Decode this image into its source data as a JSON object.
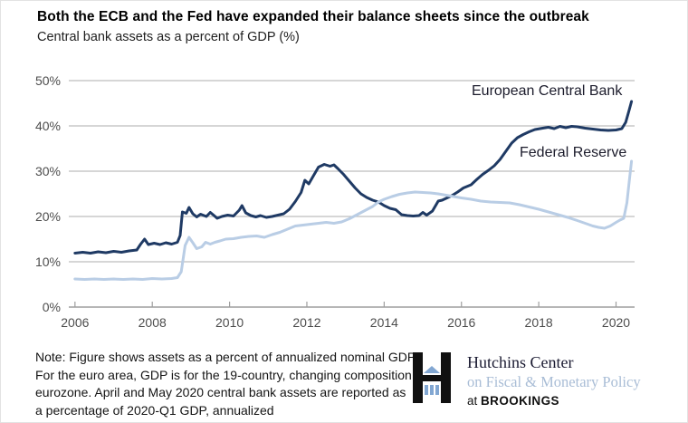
{
  "header": {
    "title": "Both the ECB and the Fed have expanded their balance sheets since the outbreak",
    "subtitle": "Central bank assets as a percent of GDP (%)"
  },
  "chart_data": {
    "type": "line",
    "title": "Central bank assets as a percent of GDP (%)",
    "xlabel": "",
    "ylabel": "",
    "xlim": [
      2005.84,
      2020.48
    ],
    "ylim": [
      0,
      50
    ],
    "grid": "horizontal",
    "legend_position": "inline-labels",
    "x_ticks": [
      2006,
      2008,
      2010,
      2012,
      2014,
      2016,
      2018,
      2020
    ],
    "x_tick_labels": [
      "2006",
      "2008",
      "2010",
      "2012",
      "2014",
      "2016",
      "2018",
      "2020"
    ],
    "y_ticks": [
      0,
      10,
      20,
      30,
      40,
      50
    ],
    "y_tick_labels": [
      "0%",
      "10%",
      "20%",
      "30%",
      "40%",
      "50%"
    ],
    "colors": {
      "ecb": "#1f3a64",
      "fed": "#b9cde5",
      "gridline": "#bdbdbd",
      "axis": "#9e9e9e"
    },
    "series": [
      {
        "name": "European Central Bank",
        "color": "#1f3a64",
        "points": [
          [
            2006.0,
            11.9
          ],
          [
            2006.2,
            12.1
          ],
          [
            2006.4,
            11.9
          ],
          [
            2006.6,
            12.2
          ],
          [
            2006.8,
            12.0
          ],
          [
            2007.0,
            12.3
          ],
          [
            2007.2,
            12.1
          ],
          [
            2007.4,
            12.4
          ],
          [
            2007.6,
            12.6
          ],
          [
            2007.7,
            13.9
          ],
          [
            2007.8,
            15.0
          ],
          [
            2007.9,
            13.8
          ],
          [
            2008.05,
            14.1
          ],
          [
            2008.2,
            13.8
          ],
          [
            2008.35,
            14.2
          ],
          [
            2008.5,
            13.9
          ],
          [
            2008.65,
            14.3
          ],
          [
            2008.72,
            15.8
          ],
          [
            2008.78,
            21.0
          ],
          [
            2008.88,
            20.7
          ],
          [
            2008.95,
            22.0
          ],
          [
            2009.05,
            20.6
          ],
          [
            2009.15,
            19.9
          ],
          [
            2009.25,
            20.5
          ],
          [
            2009.4,
            20.0
          ],
          [
            2009.5,
            20.9
          ],
          [
            2009.6,
            20.2
          ],
          [
            2009.68,
            19.6
          ],
          [
            2009.8,
            20.0
          ],
          [
            2009.95,
            20.3
          ],
          [
            2010.1,
            20.1
          ],
          [
            2010.25,
            21.4
          ],
          [
            2010.32,
            22.4
          ],
          [
            2010.42,
            20.8
          ],
          [
            2010.55,
            20.2
          ],
          [
            2010.68,
            19.9
          ],
          [
            2010.8,
            20.2
          ],
          [
            2010.95,
            19.8
          ],
          [
            2011.1,
            20.0
          ],
          [
            2011.25,
            20.3
          ],
          [
            2011.4,
            20.6
          ],
          [
            2011.55,
            21.6
          ],
          [
            2011.7,
            23.3
          ],
          [
            2011.85,
            25.3
          ],
          [
            2011.95,
            28.0
          ],
          [
            2012.05,
            27.2
          ],
          [
            2012.15,
            28.7
          ],
          [
            2012.3,
            30.9
          ],
          [
            2012.45,
            31.5
          ],
          [
            2012.6,
            31.1
          ],
          [
            2012.7,
            31.4
          ],
          [
            2012.8,
            30.6
          ],
          [
            2012.95,
            29.3
          ],
          [
            2013.1,
            27.8
          ],
          [
            2013.25,
            26.3
          ],
          [
            2013.4,
            25.0
          ],
          [
            2013.55,
            24.2
          ],
          [
            2013.7,
            23.6
          ],
          [
            2013.85,
            23.2
          ],
          [
            2014.0,
            22.4
          ],
          [
            2014.15,
            21.8
          ],
          [
            2014.3,
            21.5
          ],
          [
            2014.45,
            20.4
          ],
          [
            2014.6,
            20.2
          ],
          [
            2014.75,
            20.1
          ],
          [
            2014.9,
            20.2
          ],
          [
            2015.0,
            20.9
          ],
          [
            2015.1,
            20.3
          ],
          [
            2015.25,
            21.2
          ],
          [
            2015.4,
            23.4
          ],
          [
            2015.5,
            23.6
          ],
          [
            2015.6,
            24.0
          ],
          [
            2015.75,
            24.6
          ],
          [
            2015.9,
            25.4
          ],
          [
            2016.05,
            26.3
          ],
          [
            2016.25,
            27.0
          ],
          [
            2016.4,
            28.2
          ],
          [
            2016.55,
            29.3
          ],
          [
            2016.7,
            30.2
          ],
          [
            2016.85,
            31.2
          ],
          [
            2017.0,
            32.6
          ],
          [
            2017.15,
            34.4
          ],
          [
            2017.3,
            36.2
          ],
          [
            2017.45,
            37.4
          ],
          [
            2017.6,
            38.1
          ],
          [
            2017.75,
            38.7
          ],
          [
            2017.9,
            39.2
          ],
          [
            2018.1,
            39.5
          ],
          [
            2018.25,
            39.7
          ],
          [
            2018.4,
            39.4
          ],
          [
            2018.55,
            39.9
          ],
          [
            2018.7,
            39.6
          ],
          [
            2018.85,
            39.9
          ],
          [
            2019.0,
            39.8
          ],
          [
            2019.2,
            39.5
          ],
          [
            2019.4,
            39.3
          ],
          [
            2019.6,
            39.1
          ],
          [
            2019.8,
            39.0
          ],
          [
            2020.0,
            39.1
          ],
          [
            2020.15,
            39.4
          ],
          [
            2020.25,
            40.8
          ],
          [
            2020.33,
            43.2
          ],
          [
            2020.4,
            45.4
          ]
        ]
      },
      {
        "name": "Federal Reserve",
        "color": "#b9cde5",
        "points": [
          [
            2006.0,
            6.2
          ],
          [
            2006.25,
            6.1
          ],
          [
            2006.5,
            6.2
          ],
          [
            2006.75,
            6.1
          ],
          [
            2007.0,
            6.2
          ],
          [
            2007.25,
            6.1
          ],
          [
            2007.5,
            6.2
          ],
          [
            2007.75,
            6.1
          ],
          [
            2008.0,
            6.3
          ],
          [
            2008.25,
            6.2
          ],
          [
            2008.5,
            6.3
          ],
          [
            2008.65,
            6.5
          ],
          [
            2008.75,
            7.8
          ],
          [
            2008.85,
            13.6
          ],
          [
            2008.95,
            15.4
          ],
          [
            2009.05,
            14.2
          ],
          [
            2009.15,
            12.9
          ],
          [
            2009.28,
            13.3
          ],
          [
            2009.38,
            14.3
          ],
          [
            2009.5,
            13.9
          ],
          [
            2009.62,
            14.3
          ],
          [
            2009.75,
            14.6
          ],
          [
            2009.9,
            15.0
          ],
          [
            2010.1,
            15.1
          ],
          [
            2010.3,
            15.4
          ],
          [
            2010.5,
            15.6
          ],
          [
            2010.7,
            15.7
          ],
          [
            2010.9,
            15.4
          ],
          [
            2011.1,
            16.0
          ],
          [
            2011.3,
            16.5
          ],
          [
            2011.5,
            17.2
          ],
          [
            2011.7,
            17.9
          ],
          [
            2011.9,
            18.1
          ],
          [
            2012.1,
            18.3
          ],
          [
            2012.3,
            18.5
          ],
          [
            2012.5,
            18.7
          ],
          [
            2012.7,
            18.5
          ],
          [
            2012.9,
            18.8
          ],
          [
            2013.1,
            19.5
          ],
          [
            2013.3,
            20.4
          ],
          [
            2013.5,
            21.3
          ],
          [
            2013.7,
            22.2
          ],
          [
            2013.85,
            23.2
          ],
          [
            2014.0,
            23.8
          ],
          [
            2014.2,
            24.4
          ],
          [
            2014.4,
            24.9
          ],
          [
            2014.6,
            25.2
          ],
          [
            2014.8,
            25.4
          ],
          [
            2015.0,
            25.3
          ],
          [
            2015.2,
            25.2
          ],
          [
            2015.4,
            25.0
          ],
          [
            2015.6,
            24.7
          ],
          [
            2015.8,
            24.4
          ],
          [
            2016.0,
            24.1
          ],
          [
            2016.25,
            23.8
          ],
          [
            2016.5,
            23.4
          ],
          [
            2016.75,
            23.2
          ],
          [
            2017.0,
            23.1
          ],
          [
            2017.25,
            23.0
          ],
          [
            2017.5,
            22.6
          ],
          [
            2017.75,
            22.1
          ],
          [
            2018.0,
            21.6
          ],
          [
            2018.25,
            21.0
          ],
          [
            2018.5,
            20.4
          ],
          [
            2018.75,
            19.8
          ],
          [
            2019.0,
            19.1
          ],
          [
            2019.2,
            18.5
          ],
          [
            2019.4,
            17.9
          ],
          [
            2019.55,
            17.6
          ],
          [
            2019.7,
            17.4
          ],
          [
            2019.85,
            17.9
          ],
          [
            2020.0,
            18.7
          ],
          [
            2020.1,
            19.2
          ],
          [
            2020.2,
            19.6
          ],
          [
            2020.28,
            23.0
          ],
          [
            2020.35,
            28.5
          ],
          [
            2020.4,
            32.2
          ]
        ]
      }
    ]
  },
  "note": {
    "lines": [
      "Note: Figure shows assets as a percent of annualized nominal GDP.",
      "For the euro area, GDP is for the 19-country, changing composition",
      "eurozone. April and May 2020 central bank assets are reported as",
      "a percentage of 2020-Q1 GDP, annualized"
    ]
  },
  "logo": {
    "line1": "Hutchins Center",
    "line2": "on Fiscal & Monetary Policy",
    "line3_prefix": "at ",
    "line3_org": "BROOKINGS"
  }
}
